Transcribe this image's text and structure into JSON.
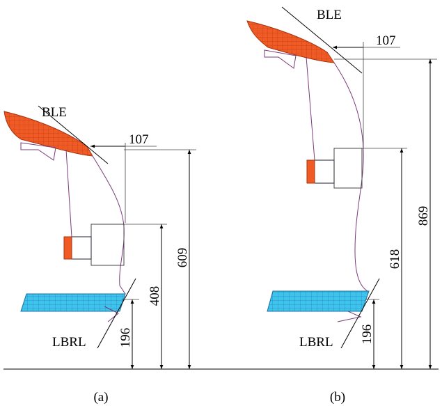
{
  "panels": [
    {
      "caption": "(a)",
      "ble": "BLE",
      "lbrl": "LBRL",
      "dims": {
        "horizontal": 107,
        "lower": 196,
        "middle": 408,
        "upper": 609
      }
    },
    {
      "caption": "(b)",
      "ble": "BLE",
      "lbrl": "LBRL",
      "dims": {
        "horizontal": 107,
        "lower": 196,
        "middle": 618,
        "upper": 869
      }
    }
  ]
}
